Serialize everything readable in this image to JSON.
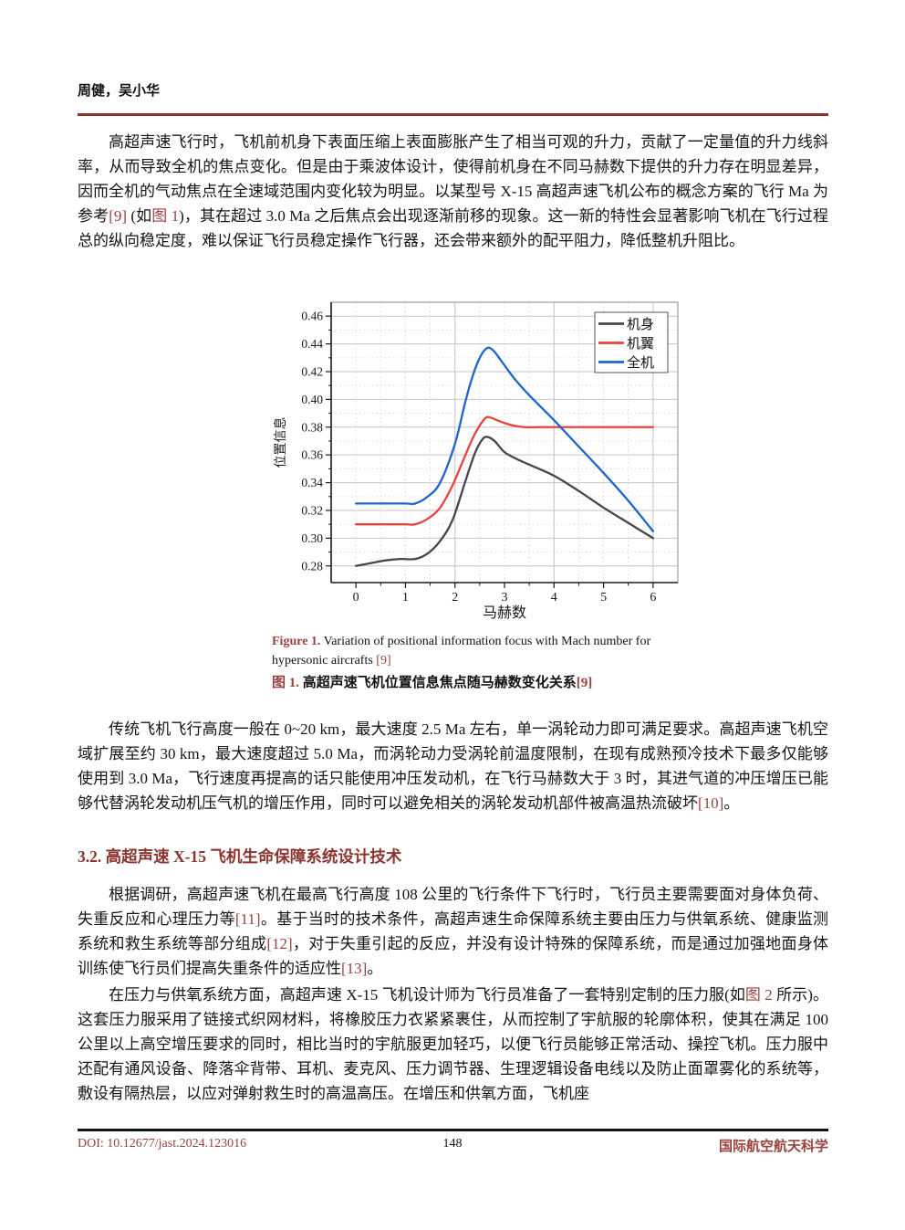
{
  "header": {
    "authors": "周健，吴小华"
  },
  "article": {
    "p1": [
      {
        "text": "高超声速飞行时，飞机前机身下表面压缩上表面膨胀产生了相当可观的升力，贡献了一定量值的升力线斜率，从而导致全机的焦点变化。但是由于乘波体设计，使得前机身在不同马赫数下提供的升力存在明显差异，因而全机的气动焦点在全速域范围内变化较为明显。以某型号 X-15 高超声速飞机公布的概念方案的飞行 Ma 为参考",
        "style": ""
      },
      {
        "text": "[9]",
        "style": "ref"
      },
      {
        "text": " (如",
        "style": ""
      },
      {
        "text": "图 1",
        "style": "ref"
      },
      {
        "text": ")，其在超过 3.0 Ma 之后焦点会出现逐渐前移的现象。这一新的特性会显著影响飞机在飞行过程总的纵向稳定度，难以保证飞行员稳定操作飞行器，还会带来额外的配平阻力，降低整机升阻比。",
        "style": ""
      }
    ],
    "figure": {
      "caption_en": [
        {
          "text": "Figure 1.",
          "style": "label"
        },
        {
          "text": " Variation of positional information focus with Mach number for hypersonic aircrafts ",
          "style": ""
        },
        {
          "text": "[9]",
          "style": "ref"
        }
      ],
      "caption_cn": [
        {
          "text": "图 1.",
          "style": "label"
        },
        {
          "text": " 高超声速飞机位置信息焦点随马赫数变化关系",
          "style": ""
        },
        {
          "text": "[9]",
          "style": "ref"
        }
      ]
    },
    "p2": [
      {
        "text": "传统飞机飞行高度一般在 0~20 km，最大速度 2.5 Ma 左右，单一涡轮动力即可满足要求。高超声速飞机空域扩展至约 30 km，最大速度超过 5.0 Ma，而涡轮动力受涡轮前温度限制，在现有成熟预冷技术下最多仅能够使用到 3.0 Ma，飞行速度再提高的话只能使用冲压发动机，在飞行马赫数大于 3 时，其进气道的冲压增压已能够代替涡轮发动机压气机的增压作用，同时可以避免相关的涡轮发动机部件被高温热流破坏",
        "style": ""
      },
      {
        "text": "[10]",
        "style": "ref"
      },
      {
        "text": "。",
        "style": ""
      }
    ],
    "heading_32": "3.2. 高超声速 X-15 飞机生命保障系统设计技术",
    "p3": [
      {
        "text": "根据调研，高超声速飞机在最高飞行高度 108 公里的飞行条件下飞行时，飞行员主要需要面对身体负荷、失重反应和心理压力等",
        "style": ""
      },
      {
        "text": "[11]",
        "style": "ref"
      },
      {
        "text": "。基于当时的技术条件，高超声速生命保障系统主要由压力与供氧系统、健康监测系统和救生系统等部分组成",
        "style": ""
      },
      {
        "text": "[12]",
        "style": "ref"
      },
      {
        "text": "，对于失重引起的反应，并没有设计特殊的保障系统，而是通过加强地面身体训练使飞行员们提高失重条件的适应性",
        "style": ""
      },
      {
        "text": "[13]",
        "style": "ref"
      },
      {
        "text": "。",
        "style": ""
      }
    ],
    "p4": [
      {
        "text": "在压力与供氧系统方面，高超声速 X-15 飞机设计师为飞行员准备了一套特别定制的压力服(如",
        "style": ""
      },
      {
        "text": "图 2",
        "style": "ref"
      },
      {
        "text": " 所示)。这套压力服采用了链接式织网材料，将橡胶压力衣紧紧裹住，从而控制了宇航服的轮廓体积，使其在满足 100 公里以上高空增压要求的同时，相比当时的宇航服更加轻巧，以便飞行员能够正常活动、操控飞机。压力服中还配有通风设备、降落伞背带、耳机、麦克风、压力调节器、生理逻辑设备电线以及防止面罩雾化的系统等，敷设有隔热层，以应对弹射救生时的高温高压。在增压和供氧方面，飞机座",
        "style": ""
      }
    ]
  },
  "footer": {
    "doi": "DOI: 10.12677/jast.2024.123016",
    "page_number": "148",
    "journal": "国际航空航天科学"
  },
  "colors": {
    "accent": "#9a423e",
    "heading": "#8c3430",
    "grid_major": "#c4c4c4",
    "grid_minor": "#d8d8d8"
  },
  "chart_data": {
    "type": "line",
    "title": "",
    "xlabel": "马赫数",
    "ylabel": "位置信息",
    "xlim": [
      -0.5,
      6.5
    ],
    "ylim": [
      0.268,
      0.47
    ],
    "xticks": [
      0,
      1,
      2,
      3,
      4,
      5,
      6
    ],
    "yticks": [
      0.28,
      0.3,
      0.32,
      0.34,
      0.36,
      0.38,
      0.4,
      0.42,
      0.44,
      0.46
    ],
    "x_solid_grid": [
      2,
      4,
      6
    ],
    "grid": true,
    "legend_position": "top-right",
    "series": [
      {
        "name": "机身",
        "color": "#474747",
        "points": [
          [
            0,
            0.28
          ],
          [
            0.3,
            0.282
          ],
          [
            0.6,
            0.284
          ],
          [
            0.9,
            0.285
          ],
          [
            1.2,
            0.285
          ],
          [
            1.45,
            0.289
          ],
          [
            1.7,
            0.298
          ],
          [
            1.95,
            0.313
          ],
          [
            2.2,
            0.34
          ],
          [
            2.4,
            0.361
          ],
          [
            2.55,
            0.371
          ],
          [
            2.65,
            0.373
          ],
          [
            2.8,
            0.37
          ],
          [
            3.0,
            0.362
          ],
          [
            3.25,
            0.357
          ],
          [
            3.5,
            0.353
          ],
          [
            4.0,
            0.345
          ],
          [
            4.5,
            0.334
          ],
          [
            5.0,
            0.322
          ],
          [
            5.5,
            0.311
          ],
          [
            6.0,
            0.3
          ]
        ]
      },
      {
        "name": "机翼",
        "color": "#e8423d",
        "points": [
          [
            0,
            0.31
          ],
          [
            0.5,
            0.31
          ],
          [
            1.0,
            0.31
          ],
          [
            1.2,
            0.31
          ],
          [
            1.45,
            0.314
          ],
          [
            1.7,
            0.322
          ],
          [
            1.95,
            0.338
          ],
          [
            2.2,
            0.359
          ],
          [
            2.4,
            0.375
          ],
          [
            2.6,
            0.386
          ],
          [
            2.7,
            0.387
          ],
          [
            2.85,
            0.385
          ],
          [
            3.0,
            0.383
          ],
          [
            3.2,
            0.381
          ],
          [
            3.4,
            0.38
          ],
          [
            3.7,
            0.38
          ],
          [
            4.0,
            0.38
          ],
          [
            4.5,
            0.38
          ],
          [
            5.0,
            0.38
          ],
          [
            5.5,
            0.38
          ],
          [
            6.0,
            0.38
          ]
        ]
      },
      {
        "name": "全机",
        "color": "#1c66cc",
        "points": [
          [
            0,
            0.325
          ],
          [
            0.5,
            0.325
          ],
          [
            1.0,
            0.325
          ],
          [
            1.2,
            0.325
          ],
          [
            1.45,
            0.33
          ],
          [
            1.7,
            0.34
          ],
          [
            2.0,
            0.368
          ],
          [
            2.2,
            0.397
          ],
          [
            2.35,
            0.416
          ],
          [
            2.5,
            0.43
          ],
          [
            2.65,
            0.437
          ],
          [
            2.78,
            0.435
          ],
          [
            2.95,
            0.427
          ],
          [
            3.2,
            0.415
          ],
          [
            3.5,
            0.403
          ],
          [
            4.0,
            0.385
          ],
          [
            4.5,
            0.366
          ],
          [
            5.0,
            0.347
          ],
          [
            5.5,
            0.327
          ],
          [
            6.0,
            0.305
          ]
        ]
      }
    ]
  }
}
